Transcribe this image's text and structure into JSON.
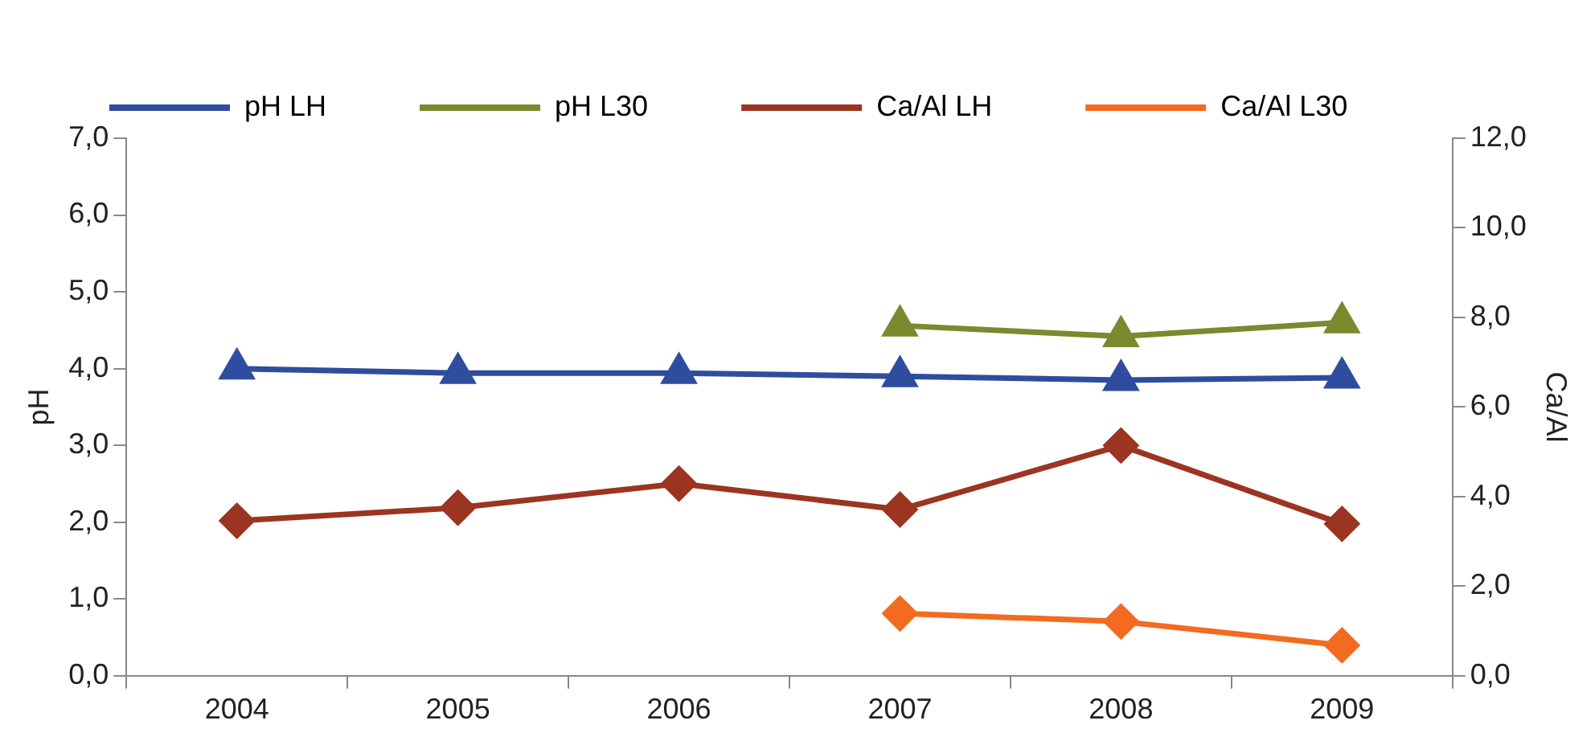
{
  "chart_data": {
    "type": "line",
    "ylabel": "pH",
    "y2label": "Ca/Al",
    "categories": [
      "2004",
      "2005",
      "2006",
      "2007",
      "2008",
      "2009"
    ],
    "series": [
      {
        "name": "pH LH",
        "color": "#2e4d9e",
        "marker": "triangle",
        "values": [
          4.0,
          3.94,
          3.94,
          3.9,
          3.85,
          3.88
        ]
      },
      {
        "name": "pH L30",
        "color": "#7a8a2e",
        "marker": "triangle",
        "values": [
          null,
          null,
          null,
          4.56,
          4.42,
          4.6
        ]
      },
      {
        "name": "Ca/Al LH",
        "color": "#9b3522",
        "marker": "diamond",
        "axis": "y2",
        "values": [
          3.46,
          3.75,
          4.29,
          3.71,
          5.14,
          3.39
        ]
      },
      {
        "name": "Ca/Al L30",
        "color": "#f26b21",
        "marker": "diamond",
        "axis": "y2",
        "values": [
          null,
          null,
          null,
          1.39,
          1.21,
          0.68
        ]
      }
    ],
    "ylim": [
      0,
      7
    ],
    "yticks": [
      {
        "value": 0,
        "label": "0,0"
      },
      {
        "value": 1,
        "label": "1,0"
      },
      {
        "value": 2,
        "label": "2,0"
      },
      {
        "value": 3,
        "label": "3,0"
      },
      {
        "value": 4,
        "label": "4,0"
      },
      {
        "value": 5,
        "label": "5,0"
      },
      {
        "value": 6,
        "label": "6,0"
      },
      {
        "value": 7,
        "label": "7,0"
      }
    ],
    "y2lim": [
      0,
      12
    ],
    "y2ticks": [
      {
        "value": 0,
        "label": "0,0"
      },
      {
        "value": 2,
        "label": "2,0"
      },
      {
        "value": 4,
        "label": "4,0"
      },
      {
        "value": 6,
        "label": "6,0"
      },
      {
        "value": 8,
        "label": "8,0"
      },
      {
        "value": 10,
        "label": "10,0"
      },
      {
        "value": 12,
        "label": "12,0"
      }
    ],
    "legend": "top",
    "grid": false,
    "line_style": "solid"
  }
}
